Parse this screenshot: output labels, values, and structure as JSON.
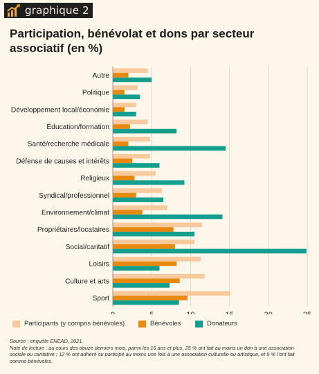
{
  "tag": {
    "label": "graphique 2"
  },
  "colors": {
    "background": "#fdf6ea",
    "participants": "#f8c99d",
    "benevoles": "#e8890c",
    "donateurs": "#139e8e",
    "grid": "#d9d2c7"
  },
  "chart_data": {
    "type": "bar",
    "orientation": "horizontal",
    "title": "Participation, bénévolat et dons par secteur associatif (en %)",
    "categories": [
      "Autre",
      "Politique",
      "Développement local/économie",
      "Éducation/formation",
      "Santé/recherche médicale",
      "Défense de causes et intérêts",
      "Religieux",
      "Syndical/professionnel",
      "Environnement/climat",
      "Propriétaires/locataires",
      "Social/caritatif",
      "Loisirs",
      "Culture et arts",
      "Sport"
    ],
    "series": [
      {
        "name": "Participants (y compris bénévoles)",
        "color": "#f8c99d",
        "values": [
          4.5,
          3.2,
          3.0,
          4.5,
          4.8,
          4.8,
          5.5,
          6.3,
          7.0,
          11.5,
          10.5,
          11.3,
          11.8,
          15.1
        ]
      },
      {
        "name": "Bénévoles",
        "color": "#e8890c",
        "values": [
          2.0,
          1.5,
          1.5,
          2.2,
          2.0,
          2.5,
          2.8,
          3.0,
          3.8,
          7.8,
          8.0,
          8.2,
          8.6,
          9.6
        ]
      },
      {
        "name": "Donateurs",
        "color": "#139e8e",
        "values": [
          5.0,
          3.5,
          3.0,
          8.2,
          14.5,
          6.0,
          9.2,
          6.5,
          14.1,
          10.5,
          24.9,
          6.0,
          7.3,
          8.5
        ]
      }
    ],
    "xlim": [
      0,
      25
    ],
    "xticks": [
      "0",
      "5",
      "10",
      "15",
      "20",
      "25"
    ],
    "grid": true,
    "legend_position": "bottom"
  },
  "notes": {
    "source": "Source : enquête ENEAD, 2021.",
    "note": "Note de lecture : au cours des douze derniers mois, parmi les 16 ans et plus, 25 % ont fait au moins un don à une association sociale ou caritative ; 12 % ont adhéré ou participé au moins une fois à une association culturelle ou artistique, et 9 % l’ont fait comme bénévoles."
  }
}
